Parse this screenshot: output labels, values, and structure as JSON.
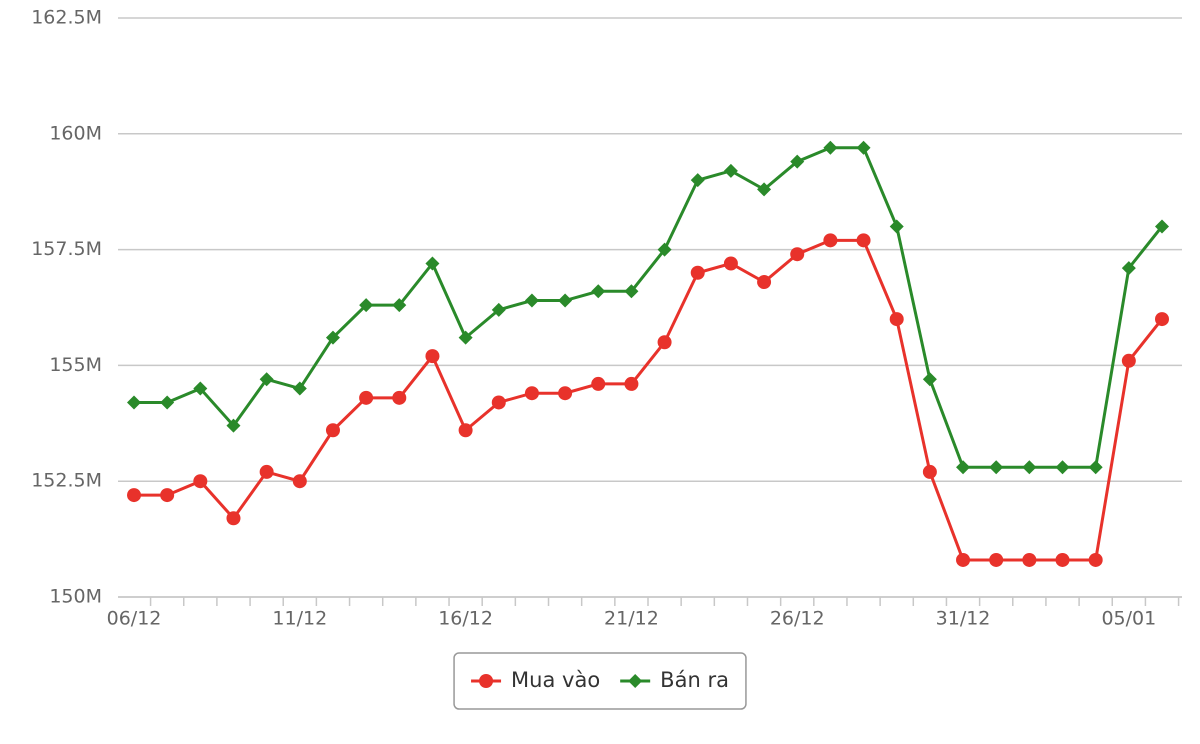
{
  "chart_data": {
    "type": "line",
    "categories": [
      "06/12",
      null,
      null,
      null,
      null,
      "11/12",
      null,
      null,
      null,
      null,
      "16/12",
      null,
      null,
      null,
      null,
      "21/12",
      null,
      null,
      null,
      null,
      "26/12",
      null,
      null,
      null,
      null,
      "31/12",
      null,
      null,
      null,
      null,
      "05/01",
      null
    ],
    "series": [
      {
        "name": "Mua vào",
        "color": "#e8322b",
        "marker": "circle",
        "values": [
          152.2,
          152.2,
          152.5,
          151.7,
          152.7,
          152.5,
          153.6,
          154.3,
          154.3,
          155.2,
          153.6,
          154.2,
          154.4,
          154.4,
          154.6,
          154.6,
          155.5,
          157.0,
          157.2,
          156.8,
          157.4,
          157.7,
          157.7,
          156.0,
          152.7,
          150.8,
          150.8,
          150.8,
          150.8,
          150.8,
          155.1,
          156.0
        ]
      },
      {
        "name": "Bán ra",
        "color": "#2a8a2a",
        "marker": "diamond",
        "values": [
          154.2,
          154.2,
          154.5,
          153.7,
          154.7,
          154.5,
          155.6,
          156.3,
          156.3,
          157.2,
          155.6,
          156.2,
          156.4,
          156.4,
          156.6,
          156.6,
          157.5,
          159.0,
          159.2,
          158.8,
          159.4,
          159.7,
          159.7,
          158.0,
          154.7,
          152.8,
          152.8,
          152.8,
          152.8,
          152.8,
          157.1,
          158.0
        ]
      }
    ],
    "ylim": [
      150,
      162.5
    ],
    "yticks": [
      {
        "value": 150,
        "label": "150M"
      },
      {
        "value": 152.5,
        "label": "152.5M"
      },
      {
        "value": 155,
        "label": "155M"
      },
      {
        "value": 157.5,
        "label": "157.5M"
      },
      {
        "value": 160,
        "label": "160M"
      },
      {
        "value": 162.5,
        "label": "162.5M"
      }
    ],
    "grid": true,
    "legend": "bottom"
  }
}
